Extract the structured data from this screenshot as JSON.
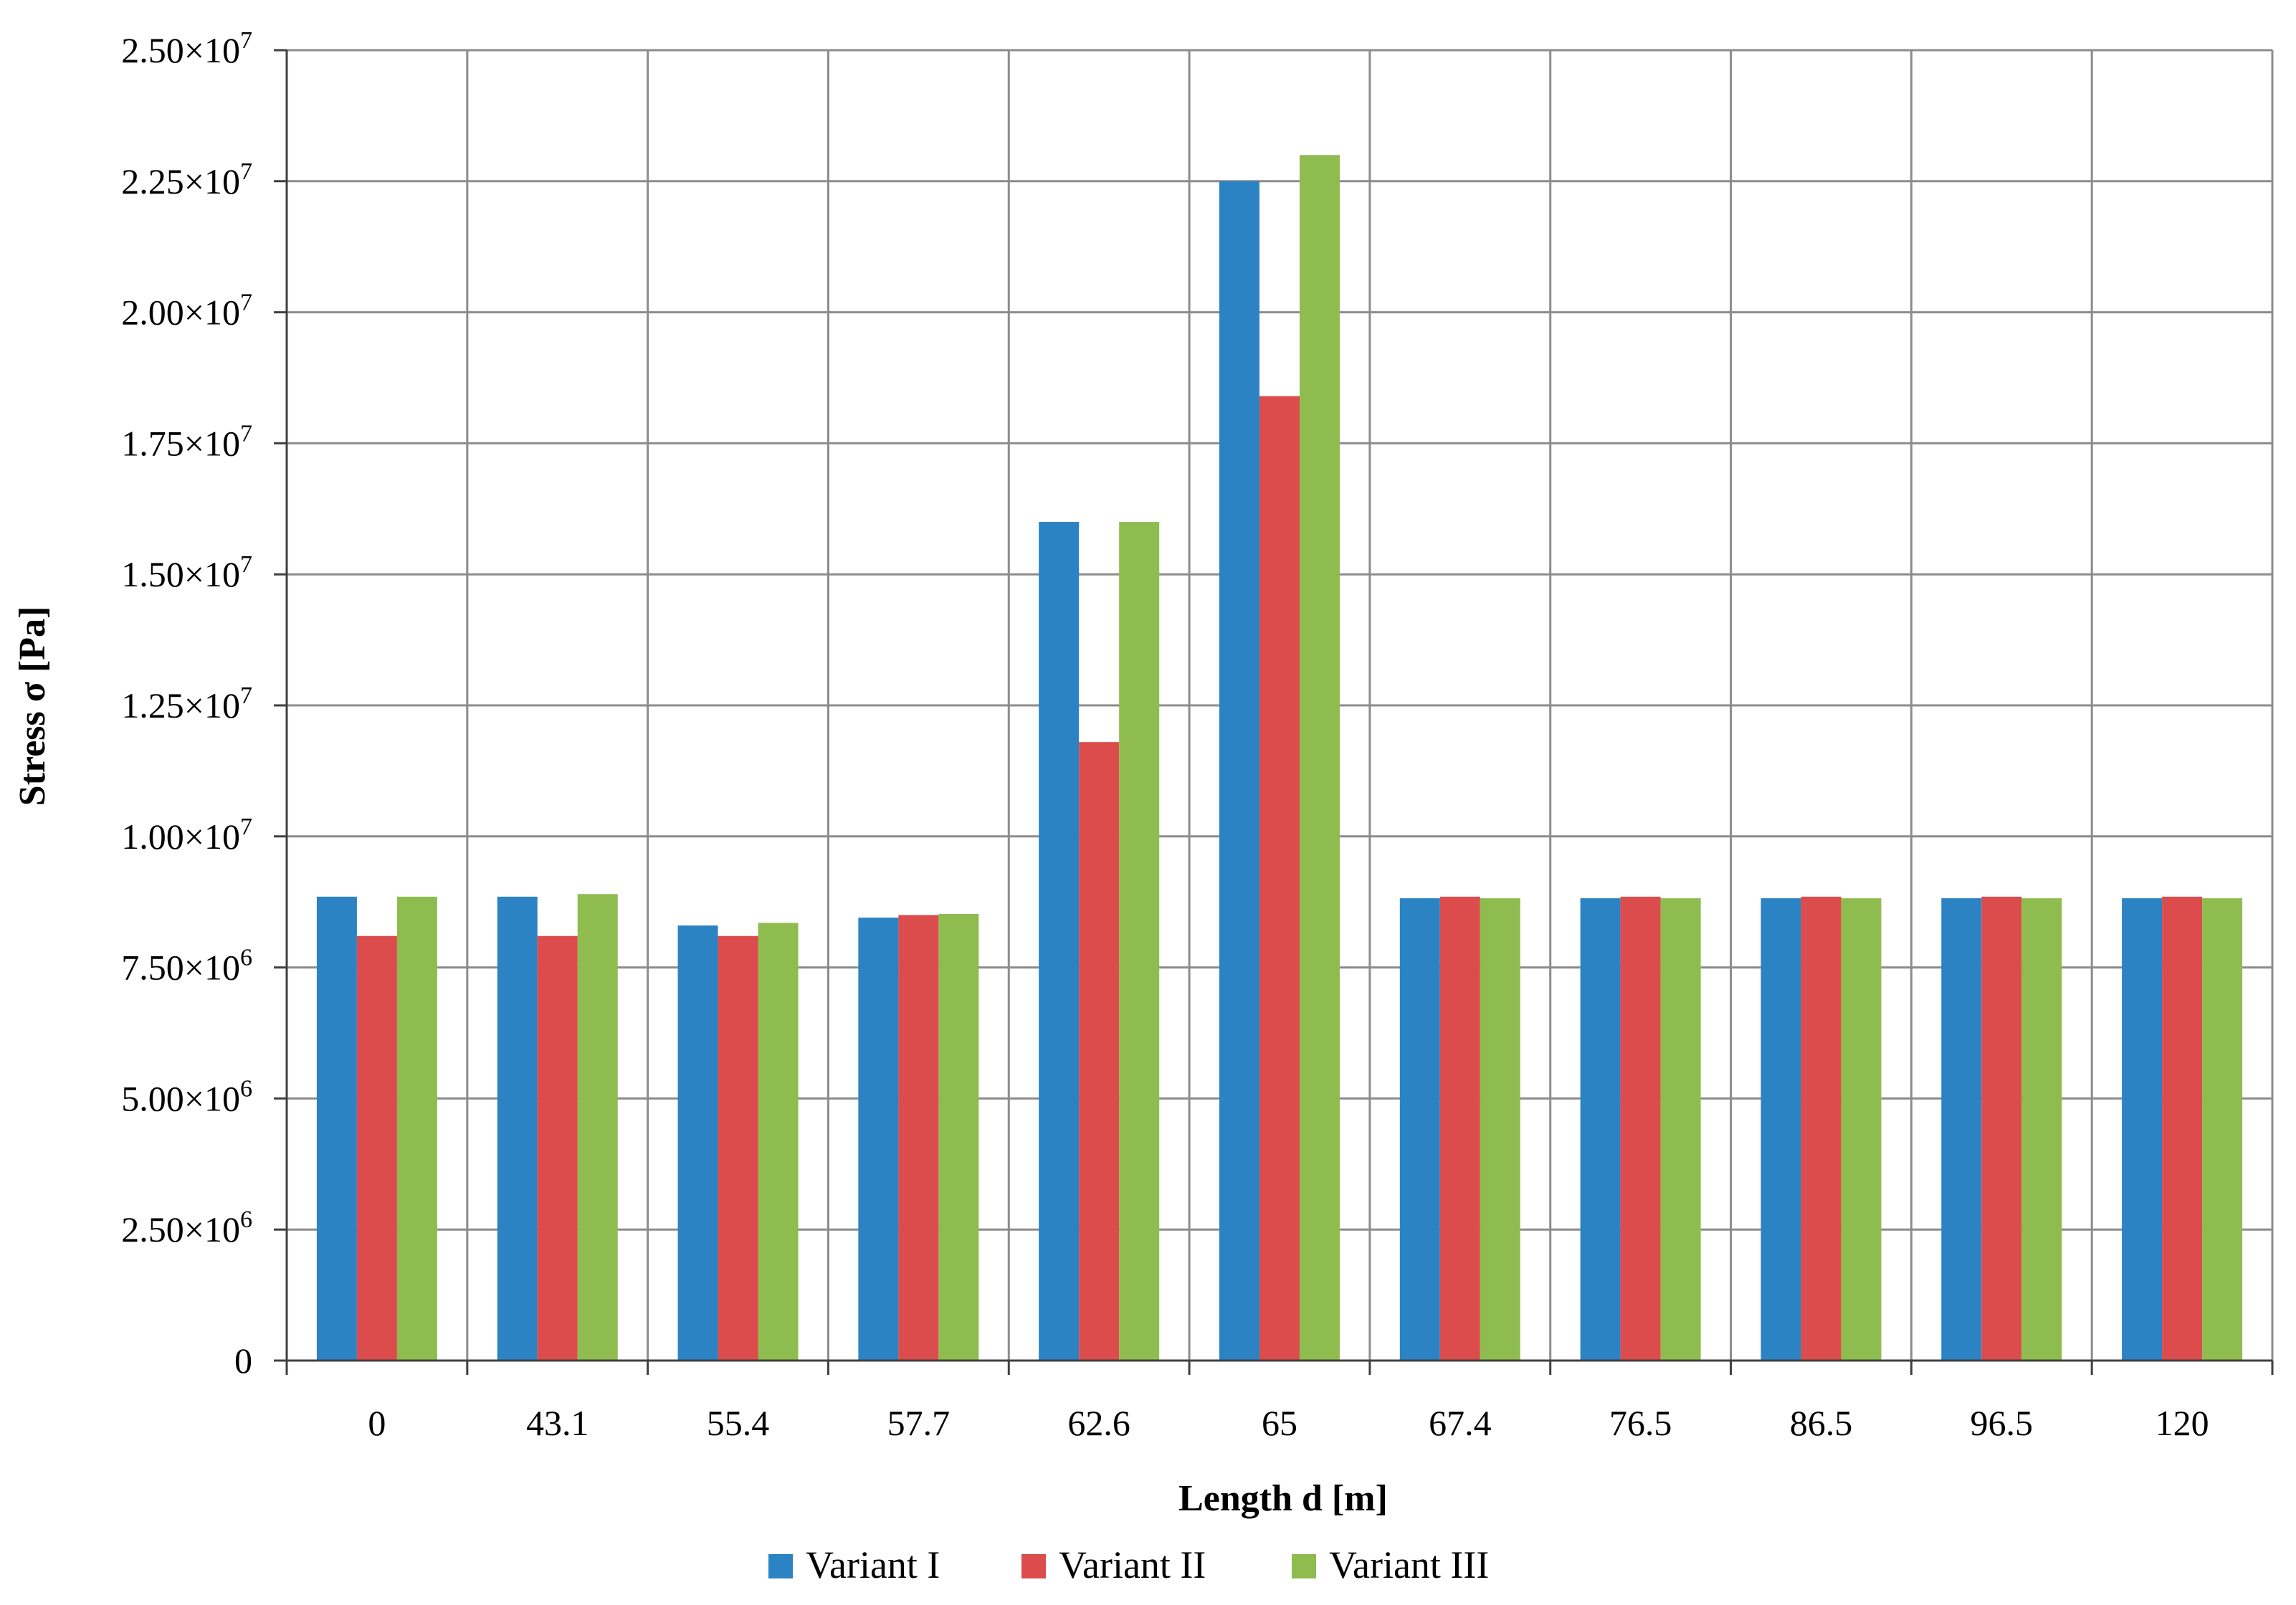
{
  "chart_data": {
    "type": "bar",
    "title": "",
    "xlabel": "Length d [m]",
    "ylabel": "Stress σ [Pa]",
    "categories": [
      "0",
      "43.1",
      "55.4",
      "57.7",
      "62.6",
      "65",
      "67.4",
      "76.5",
      "86.5",
      "96.5",
      "120"
    ],
    "series": [
      {
        "name": "Variant I",
        "color": "#2B83C4",
        "values": [
          8850000,
          8850000,
          8300000,
          8450000,
          16000000,
          22500000,
          8820000,
          8820000,
          8820000,
          8820000,
          8820000
        ]
      },
      {
        "name": "Variant II",
        "color": "#DC4C4C",
        "values": [
          8100000,
          8100000,
          8100000,
          8500000,
          11800000,
          18400000,
          8850000,
          8850000,
          8850000,
          8850000,
          8850000
        ]
      },
      {
        "name": "Variant III",
        "color": "#8FBC4F",
        "values": [
          8850000,
          8900000,
          8350000,
          8520000,
          16000000,
          23000000,
          8820000,
          8820000,
          8820000,
          8820000,
          8820000
        ]
      }
    ],
    "ylim": [
      0,
      25000000
    ],
    "yticks": [
      {
        "value": 0,
        "mant": "0",
        "exp": ""
      },
      {
        "value": 2500000,
        "mant": "2.50×10",
        "exp": "6"
      },
      {
        "value": 5000000,
        "mant": "5.00×10",
        "exp": "6"
      },
      {
        "value": 7500000,
        "mant": "7.50×10",
        "exp": "6"
      },
      {
        "value": 10000000,
        "mant": "1.00×10",
        "exp": "7"
      },
      {
        "value": 12500000,
        "mant": "1.25×10",
        "exp": "7"
      },
      {
        "value": 15000000,
        "mant": "1.50×10",
        "exp": "7"
      },
      {
        "value": 17500000,
        "mant": "1.75×10",
        "exp": "7"
      },
      {
        "value": 20000000,
        "mant": "2.00×10",
        "exp": "7"
      },
      {
        "value": 22500000,
        "mant": "2.25×10",
        "exp": "7"
      },
      {
        "value": 25000000,
        "mant": "2.50×10",
        "exp": "7"
      }
    ],
    "grid": true,
    "legend_position": "bottom-center"
  }
}
